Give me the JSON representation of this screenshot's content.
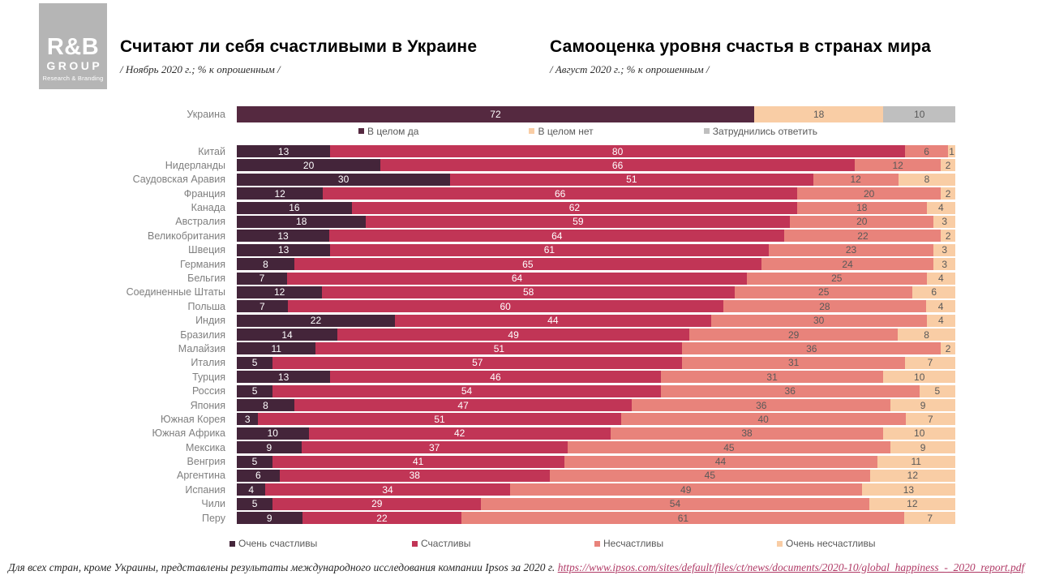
{
  "logo": {
    "line1": "R&B",
    "line2": "GROUP",
    "line3": "Research & Branding"
  },
  "left_chart": {
    "title": "Считают ли себя счастливыми в Украине",
    "subtitle": "/ Ноябрь 2020 г.; % к опрошенным  /"
  },
  "right_chart": {
    "title": "Самооценка уровня счастья в странах мира",
    "subtitle": "/ Август 2020 г.; % к опрошенным  /"
  },
  "chart_data": [
    {
      "type": "bar",
      "orientation": "horizontal",
      "stacked": true,
      "title": "Считают ли себя счастливыми в Украине",
      "categories": [
        "Украина"
      ],
      "xlim": [
        0,
        100
      ],
      "legend_position": "below-bar",
      "series": [
        {
          "name": "В целом да",
          "color": "#552940",
          "text_color": "#ffffff",
          "values": [
            72
          ]
        },
        {
          "name": "В целом нет",
          "color": "#f9cda5",
          "text_color": "#595959",
          "values": [
            18
          ]
        },
        {
          "name": "Затруднились ответить",
          "color": "#bfbfbf",
          "text_color": "#595959",
          "values": [
            10
          ]
        }
      ]
    },
    {
      "type": "bar",
      "orientation": "horizontal",
      "stacked": true,
      "title": "Самооценка уровня счастья в странах мира",
      "xlim": [
        0,
        100
      ],
      "legend_position": "bottom",
      "categories": [
        "Китай",
        "Нидерланды",
        "Саудовская Аравия",
        "Франция",
        "Канада",
        "Австралия",
        "Великобритания",
        "Швеция",
        "Германия",
        "Бельгия",
        "Соединенные Штаты",
        "Польша",
        "Индия",
        "Бразилия",
        "Малайзия",
        "Италия",
        "Турция",
        "Россия",
        "Япония",
        "Южная Корея",
        "Южная Африка",
        "Мексика",
        "Венгрия",
        "Аргентина",
        "Испания",
        "Чили",
        "Перу"
      ],
      "series": [
        {
          "name": "Очень счастливы",
          "color": "#44253a",
          "text_color": "#ffffff",
          "values": [
            13,
            20,
            30,
            12,
            16,
            18,
            13,
            13,
            8,
            7,
            12,
            7,
            22,
            14,
            11,
            5,
            13,
            5,
            8,
            3,
            10,
            9,
            5,
            6,
            4,
            5,
            9
          ]
        },
        {
          "name": "Счастливы",
          "color": "#c13556",
          "text_color": "#ffffff",
          "values": [
            80,
            66,
            51,
            66,
            62,
            59,
            64,
            61,
            65,
            64,
            58,
            60,
            44,
            49,
            51,
            57,
            46,
            54,
            47,
            51,
            42,
            37,
            41,
            38,
            34,
            29,
            22
          ]
        },
        {
          "name": "Несчастливы",
          "color": "#e8837b",
          "text_color": "#595959",
          "values": [
            6,
            12,
            12,
            20,
            18,
            20,
            22,
            23,
            24,
            25,
            25,
            28,
            30,
            29,
            36,
            31,
            31,
            36,
            36,
            40,
            38,
            45,
            44,
            45,
            49,
            54,
            61
          ]
        },
        {
          "name": "Очень несчастливы",
          "color": "#f9cda5",
          "text_color": "#595959",
          "values": [
            1,
            2,
            8,
            2,
            4,
            3,
            2,
            3,
            3,
            4,
            6,
            4,
            4,
            8,
            2,
            7,
            10,
            5,
            9,
            7,
            10,
            9,
            11,
            12,
            13,
            12,
            7
          ]
        }
      ]
    }
  ],
  "footer": {
    "text": "Для всех стран, кроме Украины, представлены результаты международного исследования компании Ipsos за 2020 г. ",
    "link_text": "https://www.ipsos.com/sites/default/files/ct/news/documents/2020-10/global_happiness_-_2020_report.pdf"
  }
}
